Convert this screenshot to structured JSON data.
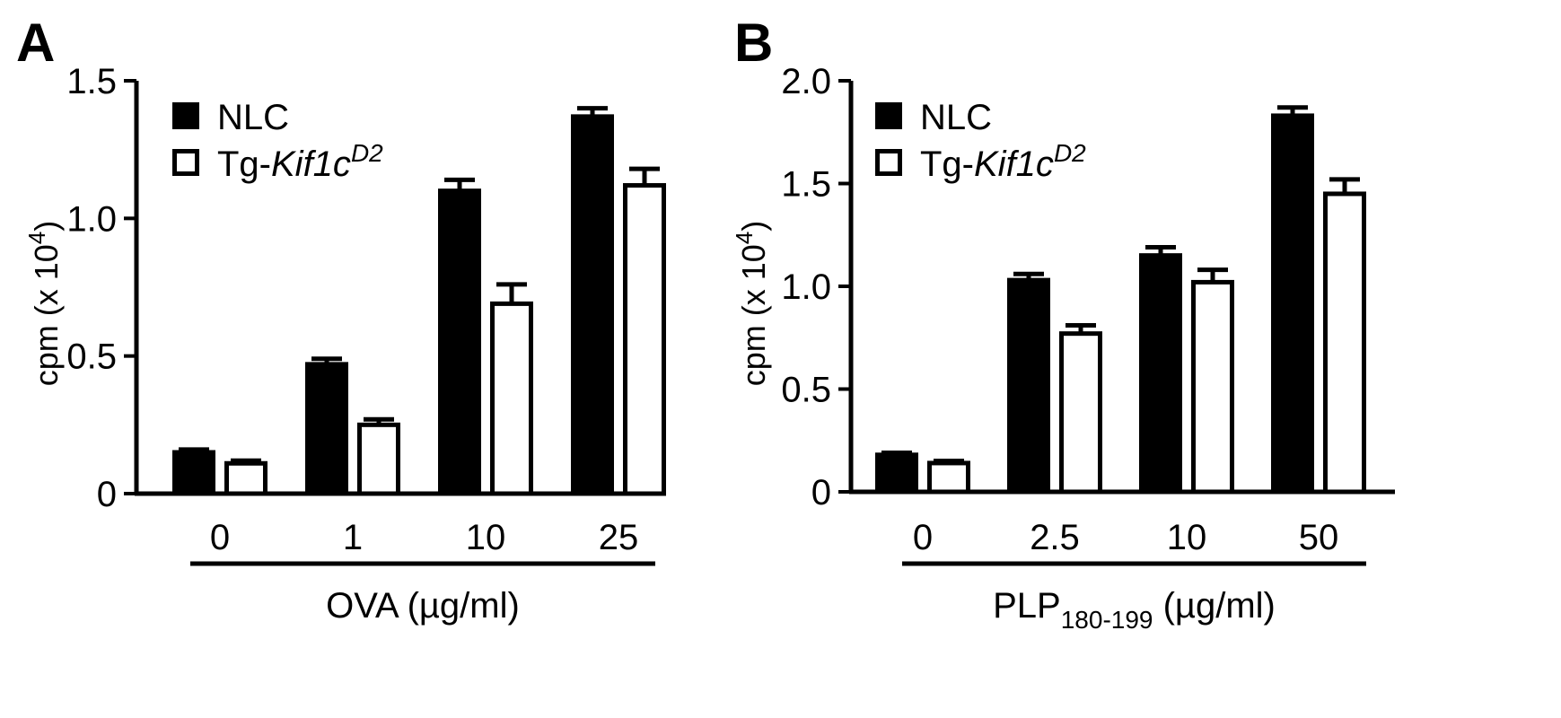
{
  "colors": {
    "filled": "#000000",
    "open": "#ffffff",
    "axis": "#000000"
  },
  "chart_data": [
    {
      "type": "bar",
      "panel": "A",
      "categories": [
        "0",
        "1",
        "10",
        "25"
      ],
      "xlabel": "OVA (µg/ml)",
      "xlabel_sub": "",
      "xlabel_tail": "",
      "ylabel": "cpm (x 10",
      "ylabel_sup": "4",
      "ylabel_tail": ")",
      "ylim": [
        0,
        1.5
      ],
      "yticks": [
        {
          "value": 0,
          "label": "0"
        },
        {
          "value": 0.5,
          "label": "0.5"
        },
        {
          "value": 1.0,
          "label": "1.0"
        },
        {
          "value": 1.5,
          "label": "1.5"
        }
      ],
      "legend": {
        "position": "top-left"
      },
      "series": [
        {
          "name": "NLC",
          "style": "filled",
          "values": [
            0.15,
            0.47,
            1.1,
            1.37
          ],
          "errors": [
            0.01,
            0.02,
            0.04,
            0.03
          ]
        },
        {
          "name": "Tg-",
          "name_italic": "Kif1c",
          "name_sup": "D2",
          "style": "open",
          "values": [
            0.11,
            0.25,
            0.69,
            1.12
          ],
          "errors": [
            0.01,
            0.02,
            0.07,
            0.06
          ]
        }
      ]
    },
    {
      "type": "bar",
      "panel": "B",
      "categories": [
        "0",
        "2.5",
        "10",
        "50"
      ],
      "xlabel": "PLP",
      "xlabel_sub": "180-199",
      "xlabel_tail": " (µg/ml)",
      "ylabel": "cpm (x 10",
      "ylabel_sup": "4",
      "ylabel_tail": ")",
      "ylim": [
        0,
        2.0
      ],
      "yticks": [
        {
          "value": 0,
          "label": "0"
        },
        {
          "value": 0.5,
          "label": "0.5"
        },
        {
          "value": 1.0,
          "label": "1.0"
        },
        {
          "value": 1.5,
          "label": "1.5"
        },
        {
          "value": 2.0,
          "label": "2.0"
        }
      ],
      "legend": {
        "position": "top-left"
      },
      "series": [
        {
          "name": "NLC",
          "style": "filled",
          "values": [
            0.18,
            1.03,
            1.15,
            1.83
          ],
          "errors": [
            0.01,
            0.03,
            0.04,
            0.04
          ]
        },
        {
          "name": "Tg-",
          "name_italic": "Kif1c",
          "name_sup": "D2",
          "style": "open",
          "values": [
            0.14,
            0.77,
            1.02,
            1.45
          ],
          "errors": [
            0.01,
            0.04,
            0.06,
            0.07
          ]
        }
      ]
    }
  ]
}
